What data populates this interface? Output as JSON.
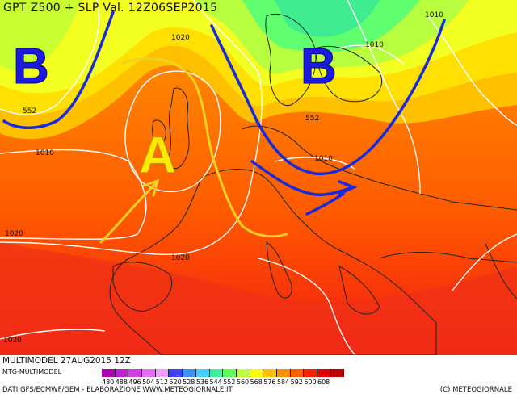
{
  "header": {
    "title": "GPT Z500 + SLP Val. 12Z06SEP2015"
  },
  "footer": {
    "run": "MULTIMODEL 27AUG2015 12Z",
    "model": "MTG-MULTIMODEL",
    "credits": "DATI GFS/ECMWF/GEM - ELABORAZIONE WWW.METEOGIORNALE.IT",
    "copyright": "(C) METEOGIORNALE"
  },
  "annotations": {
    "low_west": "B",
    "low_east": "B",
    "high": "A"
  },
  "isobar_labels": [
    "1020",
    "1010",
    "1010",
    "1010",
    "552",
    "552",
    "1010",
    "1020",
    "1020",
    "1020"
  ],
  "colorbar": {
    "ticks": [
      "480",
      "488",
      "496",
      "504",
      "512",
      "520",
      "528",
      "536",
      "544",
      "552",
      "560",
      "568",
      "576",
      "584",
      "592",
      "600",
      "608"
    ],
    "colors": [
      "#b000b0",
      "#c020d0",
      "#d040e0",
      "#e070f0",
      "#f0a0ff",
      "#4040ff",
      "#4090ff",
      "#40d0ff",
      "#40f0a0",
      "#60ff60",
      "#c0ff40",
      "#ffff00",
      "#ffc000",
      "#ff9000",
      "#ff6000",
      "#ff2000",
      "#e00000",
      "#c00000"
    ]
  },
  "colors": {
    "low_letter": "#1a1ae0",
    "high_letter": "#ffea00",
    "trough_line": "#1a2ad8",
    "ridge_line": "#f0d020"
  }
}
